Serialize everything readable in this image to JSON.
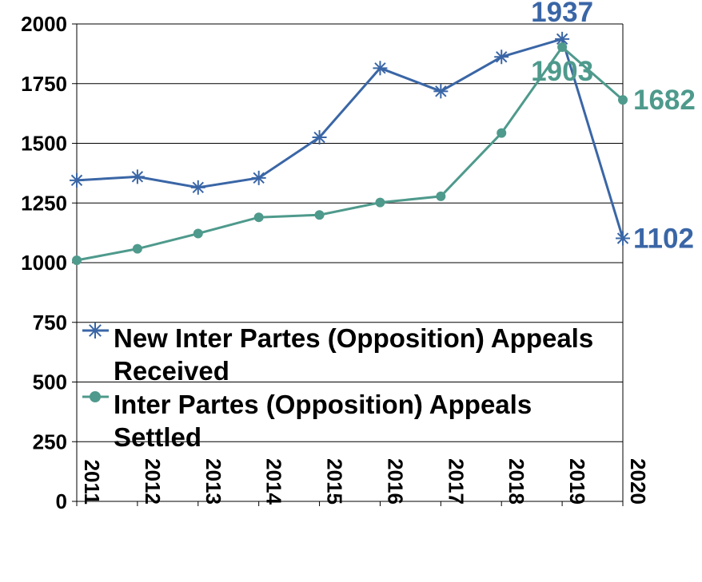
{
  "chart_data": {
    "type": "line",
    "categories": [
      "2011",
      "2012",
      "2013",
      "2014",
      "2015",
      "2016",
      "2017",
      "2018",
      "2019",
      "2020"
    ],
    "ylim": [
      0,
      2000
    ],
    "yticks": [
      0,
      250,
      500,
      750,
      1000,
      1250,
      1500,
      1750,
      2000
    ],
    "grid": "horizontal",
    "legend_position": "inside-lower-left",
    "series": [
      {
        "name": "New Inter Partes (Opposition) Appeals Received",
        "legend_lines": [
          "New Inter Partes (Opposition) Appeals",
          "Received"
        ],
        "marker": "asterisk",
        "color": "#3a66a6",
        "values": [
          1345,
          1360,
          1315,
          1355,
          1525,
          1815,
          1718,
          1862,
          1937,
          1102
        ]
      },
      {
        "name": "Inter Partes (Opposition) Appeals Settled",
        "legend_lines": [
          "Inter Partes (Opposition) Appeals",
          "Settled"
        ],
        "marker": "circle",
        "color": "#4e9a8c",
        "values": [
          1010,
          1058,
          1122,
          1190,
          1200,
          1252,
          1278,
          1543,
          1903,
          1682
        ]
      }
    ],
    "annotations": [
      {
        "text": "1937",
        "series": 0,
        "index": 8,
        "anchor": "above"
      },
      {
        "text": "1102",
        "series": 0,
        "index": 9,
        "anchor": "right"
      },
      {
        "text": "1903",
        "series": 1,
        "index": 8,
        "anchor": "below"
      },
      {
        "text": "1682",
        "series": 1,
        "index": 9,
        "anchor": "right"
      }
    ]
  }
}
